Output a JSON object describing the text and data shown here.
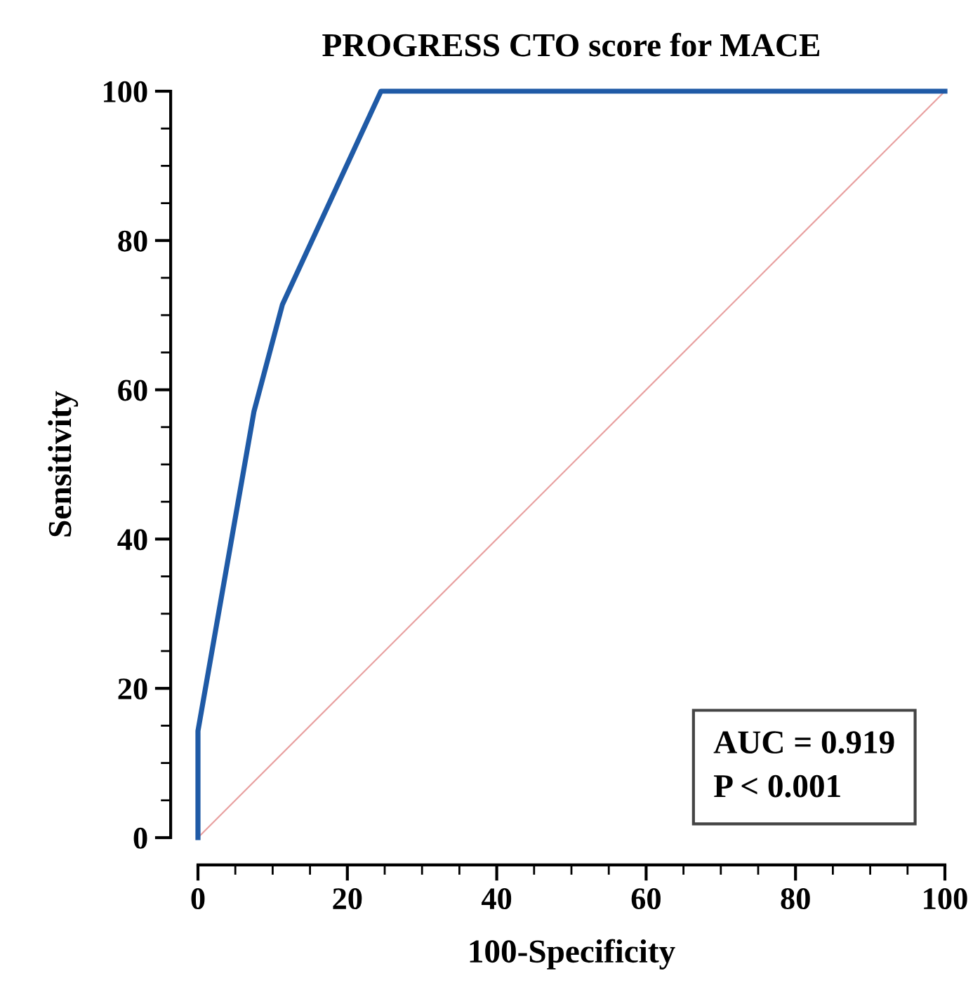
{
  "chart_data": {
    "type": "line",
    "title": "PROGRESS CTO score for MACE",
    "xlabel": "100-Specificity",
    "ylabel": "Sensitivity",
    "xlim": [
      0,
      100
    ],
    "ylim": [
      0,
      100
    ],
    "xticks": [
      0,
      20,
      40,
      60,
      80,
      100
    ],
    "yticks": [
      0,
      20,
      40,
      60,
      80,
      100
    ],
    "grid": false,
    "legend": false,
    "marker": "none",
    "series": [
      {
        "color": "#1f5aa6",
        "line_style": "solid",
        "x": [
          0,
          0,
          7.5,
          11.3,
          24.5,
          100
        ],
        "values": [
          0,
          14.3,
          57.1,
          71.4,
          100,
          100
        ]
      },
      {
        "color": "#e8a0a0",
        "line_style": "solid",
        "x": [
          0,
          100
        ],
        "values": [
          0,
          100
        ]
      }
    ],
    "annotations": [
      "AUC = 0.919",
      "P < 0.001"
    ]
  }
}
